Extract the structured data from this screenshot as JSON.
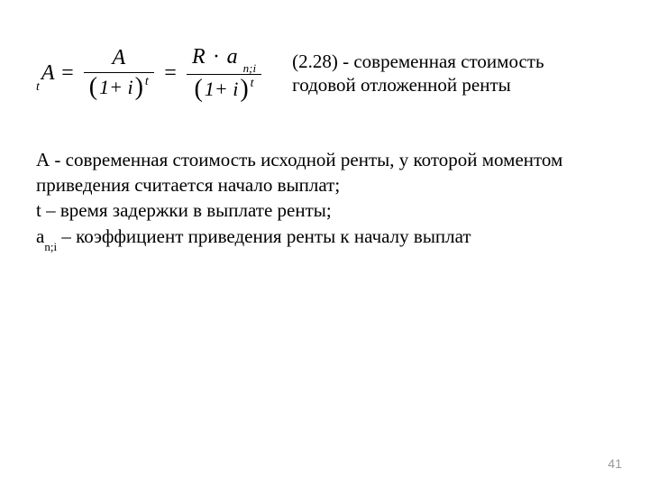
{
  "formula": {
    "presub_t": "t",
    "lhs_A": "A",
    "eq": "=",
    "frac1_num": "A",
    "frac2_num_R": "R",
    "frac2_num_dot": "·",
    "frac2_num_a": "a",
    "frac2_num_sub": "n;i",
    "den_1_plus_i": "1+ i",
    "den_exp_t": "t"
  },
  "eq_descr_line1": "(2.28) - современная стоимость",
  "eq_descr_line2": "годовой отложенной ренты",
  "defs": {
    "A_line1": "А - современная стоимость исходной ренты, у которой моментом",
    "A_line2": "приведения считается начало выплат;",
    "t_line": "t – время задержки в выплате ренты;",
    "a_label": "a",
    "a_sub": "n;i",
    "a_rest": " – коэффициент приведения ренты к началу выплат"
  },
  "page_number": "41",
  "colors": {
    "text": "#000000",
    "bg": "#ffffff",
    "page_no": "#9a9a9a"
  }
}
